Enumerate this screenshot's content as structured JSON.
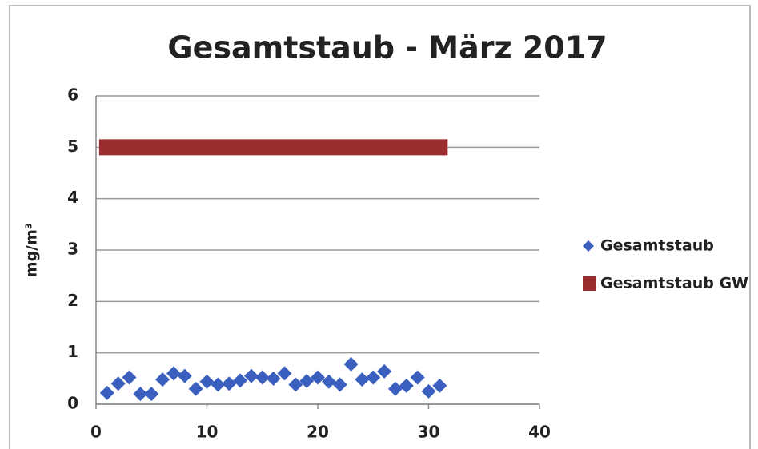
{
  "chart_data": {
    "type": "scatter",
    "title": "Gesamtstaub -  März 2017",
    "y_label": "mg/m³",
    "xlim": [
      0,
      40
    ],
    "xticks": [
      0,
      10,
      20,
      30,
      40
    ],
    "ylim": [
      0,
      6
    ],
    "yticks": [
      0,
      1,
      2,
      3,
      4,
      5,
      6
    ],
    "grid": true,
    "legend": "right",
    "series": [
      {
        "name": "Gesamtstaub",
        "color": "#3a5fbf",
        "marker": "diamond",
        "x": [
          1,
          2,
          3,
          4,
          5,
          6,
          7,
          8,
          9,
          10,
          11,
          12,
          13,
          14,
          15,
          16,
          17,
          18,
          19,
          20,
          21,
          22,
          23,
          24,
          25,
          26,
          27,
          28,
          29,
          30,
          31
        ],
        "values": [
          0.22,
          0.4,
          0.52,
          0.2,
          0.2,
          0.48,
          0.6,
          0.55,
          0.3,
          0.44,
          0.38,
          0.4,
          0.46,
          0.55,
          0.52,
          0.5,
          0.6,
          0.38,
          0.45,
          0.52,
          0.44,
          0.38,
          0.78,
          0.48,
          0.52,
          0.64,
          0.3,
          0.36,
          0.52,
          0.25,
          0.36
        ]
      },
      {
        "name": "Gesamtstaub GW",
        "color": "#9b2d30",
        "marker": "line",
        "x": [
          1,
          31
        ],
        "values": [
          5,
          5
        ]
      }
    ]
  }
}
